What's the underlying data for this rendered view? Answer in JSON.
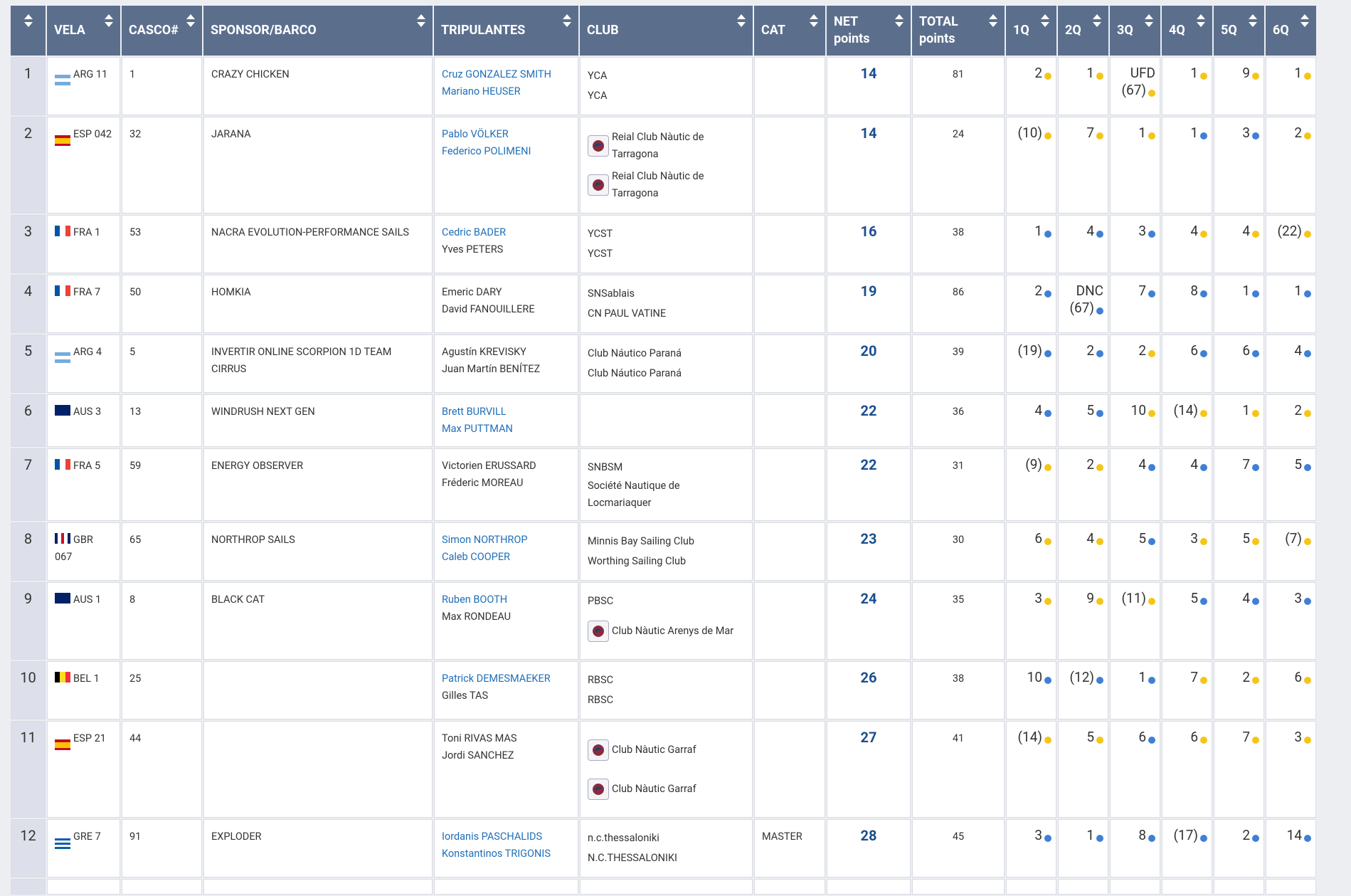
{
  "table": {
    "headers": [
      "VELA",
      "CASCO#",
      "SPONSOR/BARCO",
      "TRIPULANTES",
      "CLUB",
      "CAT",
      "NET points",
      "TOTAL points",
      "1Q",
      "2Q",
      "3Q",
      "4Q",
      "5Q",
      "6Q"
    ],
    "dot_colors": {
      "yellow": "#f5c518",
      "blue": "#3f7fd6"
    },
    "rows": [
      {
        "pos": 1,
        "sail": "ARG 11",
        "flag": {
          "dir": "column",
          "colors": [
            "#74acdf",
            "#ffffff",
            "#74acdf"
          ]
        },
        "hull": 1,
        "sponsor": "CRAZY CHICKEN",
        "crew": [
          {
            "name": "Cruz GONZALEZ SMITH",
            "link": true
          },
          {
            "name": "Mariano HEUSER",
            "link": true
          }
        ],
        "clubs": [
          {
            "name": "YCA"
          },
          {
            "name": "YCA"
          }
        ],
        "net": 14,
        "total": 81,
        "races": [
          {
            "value": 2,
            "dot": "yellow"
          },
          {
            "value": 1,
            "dot": "yellow"
          },
          {
            "value": "UFD (67)",
            "dot": "yellow"
          },
          {
            "value": 1,
            "dot": "yellow"
          },
          {
            "value": 9,
            "dot": "yellow"
          },
          {
            "value": 1,
            "dot": "yellow"
          }
        ]
      },
      {
        "pos": 2,
        "sail": "ESP 042",
        "flag": {
          "dir": "column",
          "colors": [
            "#c60b1e",
            "#ffc400",
            "#ffc400",
            "#c60b1e"
          ]
        },
        "hull": 32,
        "sponsor": "JARANA",
        "crew": [
          {
            "name": "Pablo VÖLKER",
            "link": true
          },
          {
            "name": "Federico POLIMENI",
            "link": true
          }
        ],
        "clubs": [
          {
            "name": "Reial Club Nàutic de Tarragona",
            "icon": true
          },
          {
            "name": "Reial Club Nàutic de Tarragona",
            "icon": true
          }
        ],
        "net": 14,
        "total": 24,
        "races": [
          {
            "value": "(10)",
            "dot": "yellow"
          },
          {
            "value": 7,
            "dot": "yellow"
          },
          {
            "value": 1,
            "dot": "yellow"
          },
          {
            "value": 1,
            "dot": "blue"
          },
          {
            "value": 3,
            "dot": "blue"
          },
          {
            "value": 2,
            "dot": "yellow"
          }
        ]
      },
      {
        "pos": 3,
        "sail": "FRA 1",
        "flag": {
          "dir": "row",
          "colors": [
            "#0055a4",
            "#ffffff",
            "#ef4135"
          ]
        },
        "hull": 53,
        "sponsor": "NACRA EVOLUTION-PERFORMANCE SAILS",
        "crew": [
          {
            "name": "Cedric BADER",
            "link": true
          },
          {
            "name": "Yves PETERS"
          }
        ],
        "clubs": [
          {
            "name": "YCST"
          },
          {
            "name": "YCST"
          }
        ],
        "net": 16,
        "total": 38,
        "races": [
          {
            "value": 1,
            "dot": "blue"
          },
          {
            "value": 4,
            "dot": "blue"
          },
          {
            "value": 3,
            "dot": "blue"
          },
          {
            "value": 4,
            "dot": "yellow"
          },
          {
            "value": 4,
            "dot": "yellow"
          },
          {
            "value": "(22)",
            "dot": "yellow"
          }
        ]
      },
      {
        "pos": 4,
        "sail": "FRA 7",
        "flag": {
          "dir": "row",
          "colors": [
            "#0055a4",
            "#ffffff",
            "#ef4135"
          ]
        },
        "hull": 50,
        "sponsor": "HOMKIA",
        "crew": [
          {
            "name": "Emeric DARY"
          },
          {
            "name": "David FANOUILLERE"
          }
        ],
        "clubs": [
          {
            "name": "SNSablais"
          },
          {
            "name": "CN PAUL VATINE"
          }
        ],
        "net": 19,
        "total": 86,
        "races": [
          {
            "value": 2,
            "dot": "blue"
          },
          {
            "value": "DNC (67)",
            "dot": "blue"
          },
          {
            "value": 7,
            "dot": "blue"
          },
          {
            "value": 8,
            "dot": "blue"
          },
          {
            "value": 1,
            "dot": "blue"
          },
          {
            "value": 1,
            "dot": "blue"
          }
        ]
      },
      {
        "pos": 5,
        "sail": "ARG 4",
        "flag": {
          "dir": "column",
          "colors": [
            "#74acdf",
            "#ffffff",
            "#74acdf"
          ]
        },
        "hull": 5,
        "sponsor": "INVERTIR ONLINE SCORPION 1D TEAM CIRRUS",
        "crew": [
          {
            "name": "Agustín KREVISKY"
          },
          {
            "name": "Juan Martín BENÍTEZ"
          }
        ],
        "clubs": [
          {
            "name": "Club Náutico Paraná"
          },
          {
            "name": "Club Náutico Paraná"
          }
        ],
        "net": 20,
        "total": 39,
        "races": [
          {
            "value": "(19)",
            "dot": "blue"
          },
          {
            "value": 2,
            "dot": "blue"
          },
          {
            "value": 2,
            "dot": "yellow"
          },
          {
            "value": 6,
            "dot": "blue"
          },
          {
            "value": 6,
            "dot": "blue"
          },
          {
            "value": 4,
            "dot": "blue"
          }
        ]
      },
      {
        "pos": 6,
        "sail": "AUS 3",
        "flag": {
          "dir": "row",
          "colors": [
            "#012169"
          ]
        },
        "hull": 13,
        "sponsor": "WINDRUSH NEXT GEN",
        "crew": [
          {
            "name": "Brett BURVILL",
            "link": true
          },
          {
            "name": "Max PUTTMAN",
            "link": true
          }
        ],
        "clubs": [],
        "net": 22,
        "total": 36,
        "races": [
          {
            "value": 4,
            "dot": "blue"
          },
          {
            "value": 5,
            "dot": "blue"
          },
          {
            "value": 10,
            "dot": "yellow"
          },
          {
            "value": "(14)",
            "dot": "yellow"
          },
          {
            "value": 1,
            "dot": "yellow"
          },
          {
            "value": 2,
            "dot": "yellow"
          }
        ]
      },
      {
        "pos": 7,
        "sail": "FRA 5",
        "flag": {
          "dir": "row",
          "colors": [
            "#0055a4",
            "#ffffff",
            "#ef4135"
          ]
        },
        "hull": 59,
        "sponsor": "ENERGY OBSERVER",
        "crew": [
          {
            "name": "Victorien ERUSSARD"
          },
          {
            "name": "Fréderic MOREAU"
          }
        ],
        "clubs": [
          {
            "name": "SNBSM"
          },
          {
            "name": "Société Nautique de Locmariaquer"
          }
        ],
        "net": 22,
        "total": 31,
        "races": [
          {
            "value": "(9)",
            "dot": "yellow"
          },
          {
            "value": 2,
            "dot": "yellow"
          },
          {
            "value": 4,
            "dot": "blue"
          },
          {
            "value": 4,
            "dot": "blue"
          },
          {
            "value": 7,
            "dot": "blue"
          },
          {
            "value": 5,
            "dot": "blue"
          }
        ]
      },
      {
        "pos": 8,
        "sail": "GBR 067",
        "flag": {
          "dir": "row",
          "colors": [
            "#012169",
            "#ffffff",
            "#c8102e",
            "#ffffff",
            "#012169"
          ]
        },
        "hull": 65,
        "sponsor": "NORTHROP SAILS",
        "crew": [
          {
            "name": "Simon NORTHROP",
            "link": true
          },
          {
            "name": "Caleb COOPER",
            "link": true
          }
        ],
        "clubs": [
          {
            "name": "Minnis Bay Sailing Club"
          },
          {
            "name": "Worthing Sailing Club"
          }
        ],
        "net": 23,
        "total": 30,
        "races": [
          {
            "value": 6,
            "dot": "yellow"
          },
          {
            "value": 4,
            "dot": "yellow"
          },
          {
            "value": 5,
            "dot": "blue"
          },
          {
            "value": 3,
            "dot": "yellow"
          },
          {
            "value": 5,
            "dot": "yellow"
          },
          {
            "value": "(7)",
            "dot": "yellow"
          }
        ]
      },
      {
        "pos": 9,
        "sail": "AUS 1",
        "flag": {
          "dir": "row",
          "colors": [
            "#012169"
          ]
        },
        "hull": 8,
        "sponsor": "BLACK CAT",
        "crew": [
          {
            "name": "Ruben BOOTH",
            "link": true
          },
          {
            "name": "Max RONDEAU"
          }
        ],
        "clubs": [
          {
            "name": "PBSC"
          },
          {
            "name": "Club Nàutic Arenys de Mar",
            "icon": true
          }
        ],
        "net": 24,
        "total": 35,
        "races": [
          {
            "value": 3,
            "dot": "yellow"
          },
          {
            "value": 9,
            "dot": "yellow"
          },
          {
            "value": "(11)",
            "dot": "yellow"
          },
          {
            "value": 5,
            "dot": "blue"
          },
          {
            "value": 4,
            "dot": "blue"
          },
          {
            "value": 3,
            "dot": "blue"
          }
        ]
      },
      {
        "pos": 10,
        "sail": "BEL 1",
        "flag": {
          "dir": "row",
          "colors": [
            "#000000",
            "#fdda24",
            "#ef3340"
          ]
        },
        "hull": 25,
        "crew": [
          {
            "name": "Patrick DEMESMAEKER",
            "link": true
          },
          {
            "name": "Gilles TAS"
          }
        ],
        "clubs": [
          {
            "name": "RBSC"
          },
          {
            "name": "RBSC"
          }
        ],
        "net": 26,
        "total": 38,
        "races": [
          {
            "value": 10,
            "dot": "blue"
          },
          {
            "value": "(12)",
            "dot": "blue"
          },
          {
            "value": 1,
            "dot": "blue"
          },
          {
            "value": 7,
            "dot": "yellow"
          },
          {
            "value": 2,
            "dot": "yellow"
          },
          {
            "value": 6,
            "dot": "yellow"
          }
        ]
      },
      {
        "pos": 11,
        "sail": "ESP 21",
        "flag": {
          "dir": "column",
          "colors": [
            "#c60b1e",
            "#ffc400",
            "#ffc400",
            "#c60b1e"
          ]
        },
        "hull": 44,
        "crew": [
          {
            "name": "Toni RIVAS MAS"
          },
          {
            "name": "Jordi SANCHEZ"
          }
        ],
        "clubs": [
          {
            "name": "Club Nàutic Garraf",
            "icon": true
          },
          {
            "name": "Club Nàutic Garraf",
            "icon": true
          }
        ],
        "net": 27,
        "total": 41,
        "races": [
          {
            "value": "(14)",
            "dot": "yellow"
          },
          {
            "value": 5,
            "dot": "yellow"
          },
          {
            "value": 6,
            "dot": "blue"
          },
          {
            "value": 6,
            "dot": "yellow"
          },
          {
            "value": 7,
            "dot": "yellow"
          },
          {
            "value": 3,
            "dot": "yellow"
          }
        ]
      },
      {
        "pos": 12,
        "sail": "GRE 7",
        "flag": {
          "dir": "column",
          "colors": [
            "#0d5eaf",
            "#ffffff",
            "#0d5eaf",
            "#ffffff",
            "#0d5eaf"
          ]
        },
        "hull": 91,
        "sponsor": "EXPLODER",
        "crew": [
          {
            "name": "Iordanis PASCHALIDS",
            "link": true
          },
          {
            "name": "Konstantinos TRIGONIS",
            "link": true
          }
        ],
        "clubs": [
          {
            "name": "n.c.thessaloniki"
          },
          {
            "name": "N.C.THESSALONIKI"
          }
        ],
        "cat": "MASTER",
        "net": 28,
        "total": 45,
        "races": [
          {
            "value": 3,
            "dot": "blue"
          },
          {
            "value": 1,
            "dot": "blue"
          },
          {
            "value": 8,
            "dot": "blue"
          },
          {
            "value": "(17)",
            "dot": "blue"
          },
          {
            "value": 2,
            "dot": "blue"
          },
          {
            "value": 14,
            "dot": "blue"
          }
        ]
      }
    ]
  }
}
